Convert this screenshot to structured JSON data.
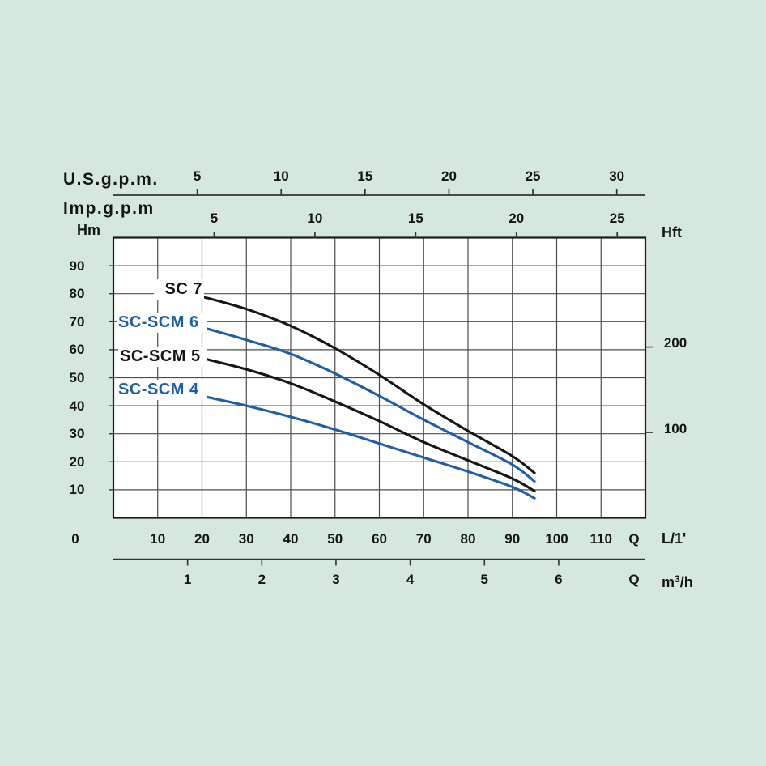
{
  "colors": {
    "background": "#d6e7dd",
    "plot_background": "#ffffff",
    "grid": "#4d4d4d",
    "border": "#1a1a1a",
    "axis_line": "#333333",
    "text": "#141414",
    "black_curve": "#161616",
    "blue_curve": "#1c5fa8"
  },
  "top_axis_us": {
    "label": "U.S.g.p.m.",
    "ticks": [
      5,
      10,
      15,
      20,
      25,
      30
    ]
  },
  "top_axis_imp": {
    "label": "Imp.g.p.m",
    "ticks": [
      5,
      10,
      15,
      20,
      25
    ]
  },
  "left_axis": {
    "label": "Hm",
    "ticks": [
      90,
      80,
      70,
      60,
      50,
      40,
      30,
      20,
      10
    ]
  },
  "right_axis": {
    "label": "Hft",
    "ticks": [
      200,
      100
    ]
  },
  "bottom_axis_flow": {
    "zero_label": "0",
    "ticks": [
      10,
      20,
      30,
      40,
      50,
      60,
      70,
      80,
      90,
      100,
      110
    ],
    "q_label": "Q",
    "unit": "L/1'"
  },
  "bottom_axis_m3h": {
    "ticks": [
      1,
      2,
      3,
      4,
      5,
      6
    ],
    "q_label": "Q",
    "unit_base": "m",
    "unit_sup": "3",
    "unit_rest": "/h"
  },
  "chart_data": {
    "type": "line",
    "x_axis": {
      "label": "Q",
      "primary_unit": "L/1'",
      "range": [
        0,
        120
      ],
      "grid_step": 10,
      "secondary_units": [
        {
          "name": "U.S.g.p.m.",
          "ticks": [
            5,
            10,
            15,
            20,
            25,
            30
          ],
          "lmin_per_unit": 3.785
        },
        {
          "name": "Imp.g.p.m",
          "ticks": [
            5,
            10,
            15,
            20,
            25
          ],
          "lmin_per_unit": 4.546
        },
        {
          "name": "m3/h",
          "ticks": [
            1,
            2,
            3,
            4,
            5,
            6
          ],
          "lmin_per_unit": 16.74
        }
      ]
    },
    "y_axis": {
      "label": "H",
      "primary_unit": "m",
      "range": [
        0,
        100
      ],
      "grid_step": 10,
      "secondary_units": [
        {
          "name": "Hft",
          "ticks": [
            100,
            200
          ],
          "m_per_unit": 0.3048
        }
      ]
    },
    "legend_position": "on-curve-left",
    "grid": true,
    "series": [
      {
        "name": "SC 7",
        "color": "#161616",
        "points_q_lmin_h_m": [
          [
            20,
            79
          ],
          [
            30,
            74.5
          ],
          [
            40,
            68.5
          ],
          [
            50,
            60.5
          ],
          [
            60,
            51
          ],
          [
            70,
            40.5
          ],
          [
            80,
            31
          ],
          [
            90,
            22
          ],
          [
            95,
            16
          ]
        ]
      },
      {
        "name": "SC-SCM 6",
        "color": "#1c5fa8",
        "points_q_lmin_h_m": [
          [
            20,
            68
          ],
          [
            30,
            63.5
          ],
          [
            40,
            58.5
          ],
          [
            50,
            51.5
          ],
          [
            60,
            43.5
          ],
          [
            70,
            35
          ],
          [
            80,
            27
          ],
          [
            90,
            19
          ],
          [
            95,
            13
          ]
        ]
      },
      {
        "name": "SC-SCM 5",
        "color": "#161616",
        "points_q_lmin_h_m": [
          [
            20,
            57
          ],
          [
            30,
            53
          ],
          [
            40,
            48
          ],
          [
            50,
            41.5
          ],
          [
            60,
            34.5
          ],
          [
            70,
            27
          ],
          [
            80,
            20.5
          ],
          [
            90,
            14
          ],
          [
            95,
            9.5
          ]
        ]
      },
      {
        "name": "SC-SCM 4",
        "color": "#1c5fa8",
        "points_q_lmin_h_m": [
          [
            20,
            43.5
          ],
          [
            30,
            40
          ],
          [
            40,
            36
          ],
          [
            50,
            31.5
          ],
          [
            60,
            26.5
          ],
          [
            70,
            21.5
          ],
          [
            80,
            16.5
          ],
          [
            90,
            11
          ],
          [
            95,
            7
          ]
        ]
      }
    ]
  }
}
